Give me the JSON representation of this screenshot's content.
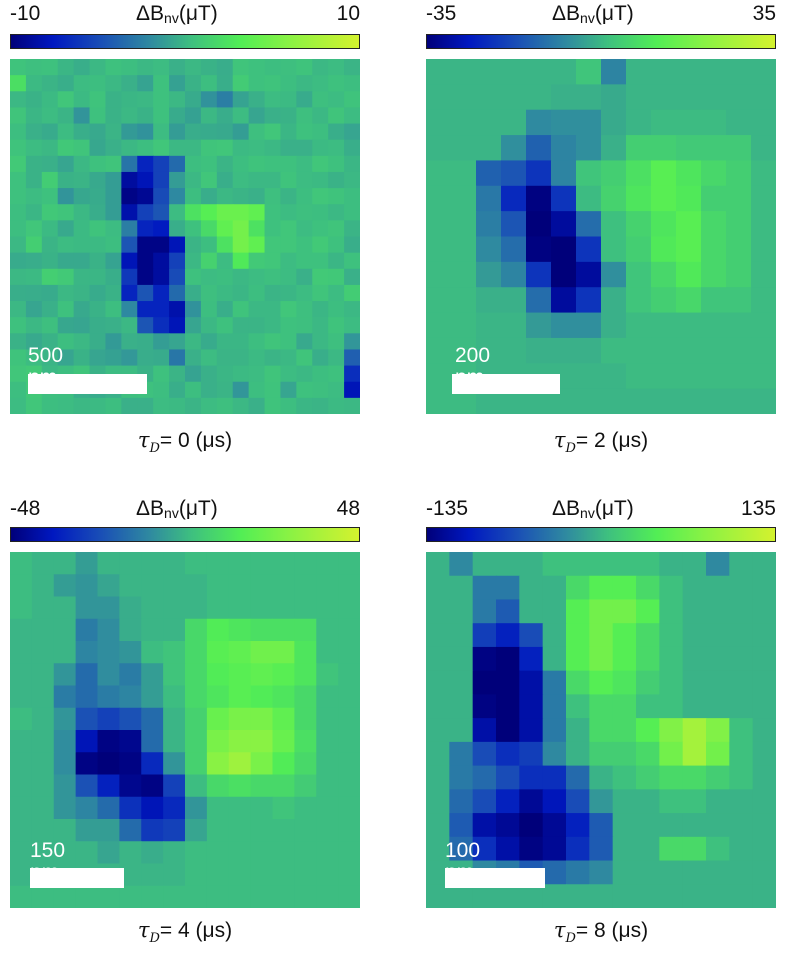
{
  "colormap": [
    "#00007a",
    "#0018c0",
    "#1a4fb6",
    "#2f8aa0",
    "#3ec07f",
    "#52ee55",
    "#8af244",
    "#d4f22e"
  ],
  "colorbar_symbol": "ΔB",
  "colorbar_subscript": "nv",
  "colorbar_unit": "(μT)",
  "caption_symbol": "τ",
  "caption_subscript": "D",
  "chart_data": [
    {
      "type": "heatmap",
      "colorbar": {
        "min_label": "-10",
        "max_label": "10",
        "range": [
          -10,
          10
        ]
      },
      "caption_value": "= 0 (μs)",
      "scale_label": "500 nm",
      "values": [
        [
          1.6,
          1.4,
          1.5,
          0.9,
          0.5,
          1.0,
          1.5,
          1.3,
          1.0,
          1.2,
          0.6,
          1.0,
          0.7,
          0.4,
          1.7,
          1.5,
          1.3,
          1.4,
          1.6,
          1.0,
          1.2,
          0.8
        ],
        [
          3.3,
          1.1,
          0.8,
          0.5,
          1.2,
          1.3,
          1.0,
          0.6,
          -0.1,
          1.5,
          -0.2,
          0.7,
          1.3,
          0.5,
          2.1,
          1.5,
          1.6,
          1.3,
          1.0,
          1.2,
          1.5,
          1.3
        ],
        [
          1.0,
          0.7,
          1.1,
          1.8,
          1.1,
          1.6,
          0.7,
          0.9,
          1.0,
          1.5,
          1.0,
          0.3,
          -1.0,
          -2.0,
          -0.1,
          0.6,
          1.2,
          1.1,
          0.3,
          1.4,
          1.2,
          1.6
        ],
        [
          1.7,
          0.9,
          1.2,
          0.8,
          -0.9,
          1.5,
          0.7,
          1.0,
          0.7,
          1.5,
          0.3,
          -0.2,
          1.0,
          0.4,
          1.2,
          0.0,
          0.6,
          0.7,
          1.4,
          1.0,
          1.7,
          1.2
        ],
        [
          1.3,
          0.6,
          0.3,
          1.2,
          0.5,
          0.2,
          0.8,
          -0.6,
          -1.0,
          1.2,
          -0.5,
          0.4,
          0.3,
          0.2,
          -0.4,
          1.4,
          1.8,
          0.9,
          1.5,
          1.3,
          0.5,
          0.0
        ],
        [
          1.6,
          1.2,
          1.0,
          1.9,
          1.7,
          0.1,
          0.6,
          1.0,
          1.3,
          1.8,
          1.0,
          1.0,
          1.7,
          1.8,
          1.1,
          1.2,
          1.0,
          0.6,
          0.6,
          1.1,
          1.2,
          0.5
        ],
        [
          2.0,
          0.7,
          0.6,
          0.0,
          1.0,
          1.5,
          1.7,
          -2.5,
          -6.5,
          -5.0,
          -3.0,
          1.3,
          1.5,
          0.8,
          1.3,
          1.6,
          1.5,
          1.5,
          1.2,
          1.8,
          1.5,
          0.9
        ],
        [
          1.5,
          0.7,
          2.2,
          0.7,
          0.8,
          0.2,
          -0.4,
          -8.5,
          -7.5,
          -5.0,
          -0.5,
          1.0,
          1.8,
          0.5,
          1.2,
          1.0,
          1.0,
          1.6,
          1.2,
          1.1,
          0.7,
          1.0
        ],
        [
          1.5,
          1.2,
          1.5,
          -0.9,
          0.1,
          0.3,
          -0.4,
          -9.5,
          -9.0,
          -4.5,
          -1.5,
          1.3,
          0.4,
          1.0,
          0.8,
          0.6,
          1.4,
          0.8,
          1.3,
          1.8,
          1.6,
          1.3
        ],
        [
          1.3,
          0.9,
          1.9,
          1.7,
          1.0,
          0.4,
          -0.4,
          -8.0,
          -5.0,
          -4.0,
          1.2,
          3.5,
          4.5,
          5.5,
          5.5,
          5.0,
          1.5,
          1.2,
          1.4,
          1.3,
          1.0,
          1.3
        ],
        [
          1.3,
          1.8,
          1.1,
          0.2,
          1.1,
          1.6,
          1.2,
          -2.0,
          -6.5,
          -7.0,
          0.5,
          1.5,
          3.0,
          5.0,
          6.0,
          3.5,
          1.5,
          1.8,
          1.2,
          1.5,
          1.7,
          0.8
        ],
        [
          1.0,
          2.3,
          0.8,
          1.2,
          1.1,
          1.1,
          1.3,
          -4.0,
          -9.5,
          -9.5,
          -7.5,
          0.8,
          1.3,
          3.5,
          6.0,
          5.0,
          1.8,
          1.8,
          1.5,
          2.0,
          1.5,
          0.5
        ],
        [
          0.3,
          0.4,
          0.7,
          0.2,
          0.2,
          0.7,
          -0.1,
          -7.5,
          -9.5,
          -8.5,
          -5.0,
          1.0,
          2.5,
          1.2,
          4.0,
          2.0,
          1.8,
          1.2,
          1.5,
          1.5,
          0.9,
          1.5
        ],
        [
          1.0,
          1.1,
          2.3,
          2.0,
          0.9,
          0.9,
          0.5,
          -5.5,
          -9.5,
          -8.5,
          -4.5,
          1.5,
          1.2,
          1.3,
          1.0,
          1.2,
          1.4,
          1.2,
          0.6,
          2.0,
          1.9,
          0.6
        ],
        [
          0.5,
          0.4,
          0.3,
          1.0,
          0.8,
          0.3,
          0.7,
          -6.5,
          -4.0,
          -6.5,
          -3.0,
          0.5,
          1.4,
          1.1,
          0.9,
          1.3,
          0.8,
          0.9,
          1.2,
          1.7,
          1.2,
          2.2
        ],
        [
          1.0,
          0.0,
          0.6,
          1.5,
          0.2,
          0.7,
          1.3,
          -1.5,
          -6.5,
          -6.5,
          -8.0,
          -1.0,
          1.3,
          0.5,
          1.6,
          1.0,
          1.0,
          1.8,
          1.4,
          0.9,
          1.3,
          1.0
        ],
        [
          1.5,
          1.0,
          1.4,
          0.1,
          0.0,
          0.5,
          0.6,
          1.0,
          -4.0,
          -6.0,
          -7.5,
          0.0,
          1.0,
          1.5,
          0.8,
          0.8,
          1.0,
          1.5,
          1.4,
          1.0,
          1.6,
          1.2
        ],
        [
          0.7,
          0.2,
          0.7,
          1.3,
          1.0,
          0.5,
          -0.6,
          0.6,
          0.5,
          -0.4,
          0.0,
          1.0,
          0.3,
          0.9,
          0.9,
          1.3,
          1.7,
          1.5,
          0.2,
          1.0,
          1.4,
          -0.8
        ],
        [
          1.6,
          1.2,
          0.8,
          0.0,
          0.7,
          0.0,
          -0.2,
          -0.7,
          0.4,
          0.3,
          -2.4,
          0.6,
          1.2,
          0.8,
          0.8,
          1.1,
          0.8,
          1.0,
          1.7,
          0.5,
          1.0,
          -3.5
        ],
        [
          1.8,
          2.0,
          1.0,
          1.3,
          1.7,
          0.7,
          1.2,
          1.2,
          0.7,
          1.5,
          0.8,
          -0.1,
          0.6,
          0.9,
          1.1,
          1.2,
          1.7,
          1.2,
          1.0,
          1.3,
          1.5,
          -6.0
        ],
        [
          1.3,
          1.9,
          1.4,
          1.3,
          0.5,
          0.3,
          0.6,
          1.4,
          1.5,
          1.3,
          0.5,
          1.3,
          0.6,
          0.8,
          -0.8,
          1.3,
          1.6,
          0.0,
          1.5,
          1.4,
          1.2,
          -7.5
        ],
        [
          1.2,
          1.8,
          1.3,
          1.2,
          1.0,
          1.1,
          1.3,
          0.6,
          0.6,
          1.2,
          1.1,
          0.8,
          1.2,
          1.4,
          1.0,
          0.6,
          1.6,
          1.3,
          0.9,
          0.8,
          1.1,
          1.0
        ]
      ]
    },
    {
      "type": "heatmap",
      "colorbar": {
        "min_label": "-35",
        "max_label": "35",
        "range": [
          -35,
          35
        ]
      },
      "caption_value": "= 2 (μs)",
      "scale_label": "200 nm",
      "values": [
        [
          3,
          3,
          3,
          3,
          3,
          3,
          6,
          -6,
          3,
          3,
          3,
          3,
          3,
          3
        ],
        [
          3,
          3,
          3,
          3,
          3,
          2,
          2,
          1,
          3,
          3,
          3,
          3,
          3,
          3
        ],
        [
          3,
          3,
          3,
          3,
          -5,
          -4,
          -4,
          1,
          3,
          4,
          4,
          4,
          3,
          3
        ],
        [
          3,
          3,
          3,
          -4,
          -12,
          -6,
          -4,
          2,
          8,
          8,
          7,
          7,
          7,
          3
        ],
        [
          4,
          4,
          -12,
          -14,
          -20,
          -6,
          6,
          8,
          12,
          16,
          13,
          10,
          8,
          4
        ],
        [
          4,
          4,
          -8,
          -22,
          -34,
          -20,
          4,
          9,
          13,
          16,
          14,
          8,
          8,
          4
        ],
        [
          4,
          4,
          -7,
          -14,
          -35,
          -30,
          -10,
          5,
          9,
          13,
          16,
          10,
          8,
          4
        ],
        [
          4,
          4,
          -5,
          -10,
          -34,
          -35,
          -20,
          5,
          8,
          14,
          16,
          10,
          8,
          4
        ],
        [
          4,
          4,
          -2,
          -6,
          -20,
          -35,
          -30,
          -4,
          6,
          10,
          14,
          10,
          8,
          4
        ],
        [
          4,
          4,
          2,
          2,
          -10,
          -30,
          -20,
          2,
          6,
          8,
          10,
          6,
          6,
          4
        ],
        [
          4,
          4,
          3,
          3,
          -2,
          -4,
          -4,
          2,
          4,
          4,
          4,
          4,
          4,
          4
        ],
        [
          4,
          4,
          3,
          3,
          2,
          2,
          2,
          4,
          4,
          4,
          4,
          4,
          4,
          4
        ],
        [
          4,
          4,
          3,
          3,
          3,
          3,
          3,
          3,
          4,
          4,
          4,
          4,
          4,
          4
        ],
        [
          4,
          4,
          3,
          3,
          3,
          3,
          3,
          3,
          3,
          3,
          3,
          3,
          3,
          3
        ]
      ]
    },
    {
      "type": "heatmap",
      "colorbar": {
        "min_label": "-48",
        "max_label": "48",
        "range": [
          -48,
          48
        ]
      },
      "caption_value": "= 4 (μs)",
      "scale_label": "150 nm",
      "values": [
        [
          6,
          4,
          4,
          -2,
          4,
          4,
          4,
          4,
          6,
          6,
          6,
          6,
          6,
          6,
          6,
          6
        ],
        [
          6,
          4,
          -2,
          -4,
          0,
          4,
          4,
          4,
          4,
          6,
          6,
          6,
          6,
          6,
          6,
          6
        ],
        [
          6,
          4,
          4,
          -4,
          -4,
          2,
          4,
          4,
          4,
          6,
          6,
          6,
          6,
          6,
          6,
          6
        ],
        [
          4,
          4,
          4,
          -10,
          -6,
          2,
          4,
          4,
          14,
          20,
          18,
          16,
          16,
          16,
          6,
          6
        ],
        [
          4,
          4,
          4,
          -8,
          -6,
          -4,
          6,
          8,
          14,
          22,
          24,
          28,
          28,
          18,
          6,
          6
        ],
        [
          4,
          4,
          -4,
          -14,
          -6,
          -10,
          -2,
          8,
          14,
          20,
          22,
          24,
          22,
          18,
          8,
          6
        ],
        [
          4,
          4,
          -10,
          -14,
          -10,
          -8,
          -2,
          6,
          14,
          18,
          22,
          20,
          18,
          14,
          6,
          6
        ],
        [
          6,
          4,
          -4,
          -20,
          -24,
          -20,
          -14,
          4,
          12,
          26,
          30,
          30,
          24,
          14,
          6,
          6
        ],
        [
          4,
          4,
          -6,
          -36,
          -46,
          -44,
          -14,
          4,
          12,
          30,
          34,
          34,
          26,
          16,
          6,
          6
        ],
        [
          4,
          4,
          -6,
          -46,
          -48,
          -46,
          -30,
          -4,
          12,
          34,
          38,
          30,
          20,
          14,
          6,
          6
        ],
        [
          4,
          4,
          -4,
          -20,
          -32,
          -44,
          -46,
          -24,
          6,
          14,
          16,
          14,
          14,
          10,
          6,
          6
        ],
        [
          4,
          4,
          -4,
          -8,
          -14,
          -28,
          -36,
          -30,
          -4,
          6,
          6,
          6,
          8,
          6,
          6,
          6
        ],
        [
          4,
          4,
          4,
          -2,
          -2,
          -14,
          -26,
          -24,
          0,
          6,
          6,
          6,
          6,
          6,
          6,
          6
        ],
        [
          4,
          4,
          4,
          4,
          0,
          4,
          2,
          4,
          6,
          6,
          6,
          6,
          6,
          6,
          6,
          6
        ],
        [
          4,
          4,
          4,
          4,
          4,
          4,
          4,
          4,
          6,
          6,
          6,
          6,
          6,
          6,
          6,
          6
        ],
        [
          6,
          6,
          6,
          6,
          6,
          6,
          6,
          6,
          6,
          6,
          6,
          6,
          6,
          6,
          6,
          6
        ]
      ]
    },
    {
      "type": "heatmap",
      "colorbar": {
        "min_label": "-135",
        "max_label": "135",
        "range": [
          -135,
          135
        ]
      },
      "caption_value": "= 8 (μs)",
      "scale_label": "100 nm",
      "values": [
        [
          10,
          -20,
          10,
          10,
          10,
          20,
          20,
          20,
          20,
          20,
          10,
          10,
          -20,
          10,
          10
        ],
        [
          10,
          10,
          -30,
          -30,
          10,
          10,
          40,
          60,
          60,
          40,
          20,
          10,
          10,
          10,
          10
        ],
        [
          10,
          10,
          -30,
          -50,
          10,
          10,
          60,
          80,
          80,
          60,
          20,
          10,
          10,
          10,
          10
        ],
        [
          10,
          10,
          -70,
          -90,
          -60,
          10,
          60,
          80,
          60,
          40,
          20,
          10,
          10,
          10,
          10
        ],
        [
          10,
          10,
          -130,
          -135,
          -90,
          10,
          60,
          80,
          60,
          40,
          20,
          10,
          10,
          10,
          10
        ],
        [
          10,
          10,
          -135,
          -135,
          -110,
          -30,
          40,
          60,
          50,
          30,
          20,
          10,
          10,
          10,
          10
        ],
        [
          10,
          10,
          -130,
          -135,
          -110,
          -30,
          20,
          40,
          40,
          20,
          20,
          10,
          10,
          10,
          10
        ],
        [
          10,
          10,
          -110,
          -135,
          -110,
          -30,
          10,
          40,
          40,
          60,
          90,
          110,
          90,
          20,
          10
        ],
        [
          10,
          -30,
          -60,
          -80,
          -70,
          -20,
          10,
          30,
          30,
          40,
          80,
          110,
          80,
          20,
          10
        ],
        [
          10,
          -30,
          -40,
          -60,
          -80,
          -80,
          -40,
          10,
          20,
          30,
          40,
          40,
          30,
          20,
          10
        ],
        [
          10,
          -40,
          -60,
          -90,
          -120,
          -100,
          -60,
          -10,
          10,
          10,
          20,
          20,
          10,
          10,
          10
        ],
        [
          10,
          -50,
          -110,
          -120,
          -135,
          -120,
          -90,
          -50,
          10,
          10,
          10,
          10,
          10,
          10,
          10
        ],
        [
          10,
          -40,
          -80,
          -110,
          -130,
          -120,
          -80,
          -50,
          10,
          10,
          40,
          40,
          20,
          10,
          10
        ],
        [
          10,
          10,
          -20,
          -30,
          -50,
          -40,
          -30,
          -20,
          10,
          10,
          10,
          10,
          10,
          10,
          10
        ],
        [
          10,
          10,
          10,
          10,
          10,
          10,
          10,
          10,
          10,
          10,
          10,
          10,
          10,
          10,
          10
        ]
      ]
    }
  ]
}
